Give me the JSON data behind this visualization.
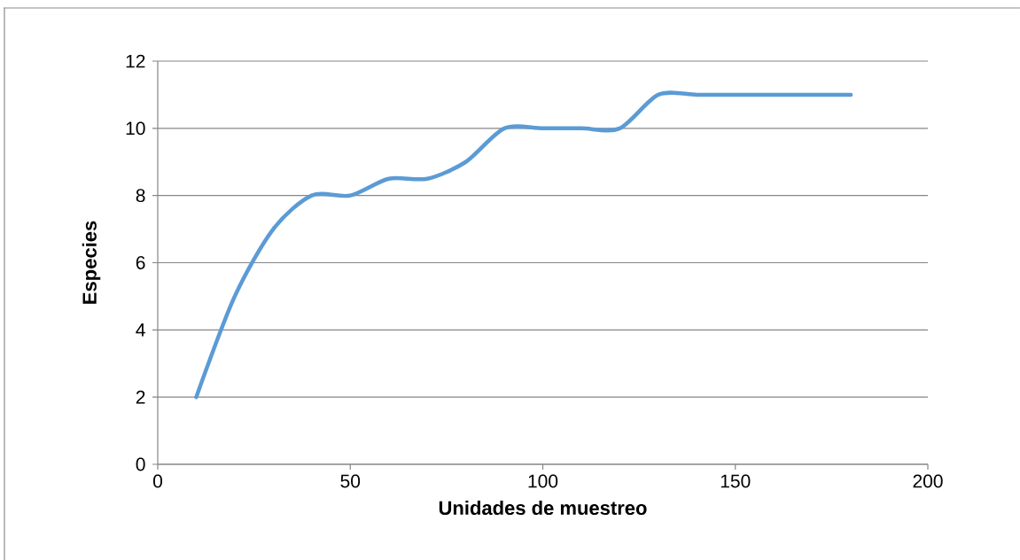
{
  "chart_data": {
    "type": "line",
    "xlabel": "Unidades de muestreo",
    "ylabel": "Especies",
    "x": [
      10,
      20,
      30,
      40,
      50,
      60,
      70,
      80,
      90,
      100,
      110,
      120,
      130,
      140,
      150,
      160,
      170,
      180
    ],
    "series": [
      {
        "color": "#5b9bd5",
        "values": [
          2,
          5,
          7,
          8,
          8,
          8.5,
          8.5,
          9,
          10,
          10,
          10,
          10,
          11,
          11,
          11,
          11,
          11,
          11
        ]
      }
    ],
    "xlim": [
      0,
      200
    ],
    "ylim": [
      0,
      12
    ],
    "xticks": [
      0,
      50,
      100,
      150,
      200
    ],
    "yticks": [
      0,
      2,
      4,
      6,
      8,
      10,
      12
    ],
    "grid": "y",
    "marker": "none",
    "line_style": "solid"
  }
}
